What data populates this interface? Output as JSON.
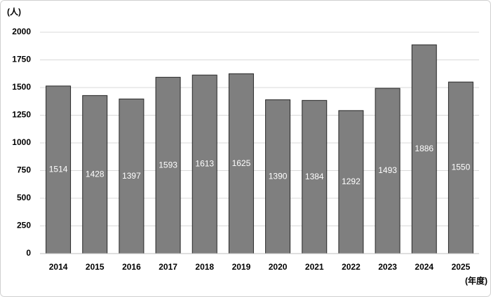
{
  "chart_data": {
    "type": "bar",
    "y_unit_label": "(人)",
    "x_unit_label": "(年度)",
    "categories": [
      "2014",
      "2015",
      "2016",
      "2017",
      "2018",
      "2019",
      "2020",
      "2021",
      "2022",
      "2023",
      "2024",
      "2025"
    ],
    "values": [
      1514,
      1428,
      1397,
      1593,
      1613,
      1625,
      1390,
      1384,
      1292,
      1493,
      1886,
      1550
    ],
    "color": "#7f7f7f",
    "ylim": [
      0,
      2000
    ],
    "yticks": [
      0,
      250,
      500,
      750,
      1000,
      1250,
      1500,
      1750,
      2000
    ],
    "grid": true
  }
}
